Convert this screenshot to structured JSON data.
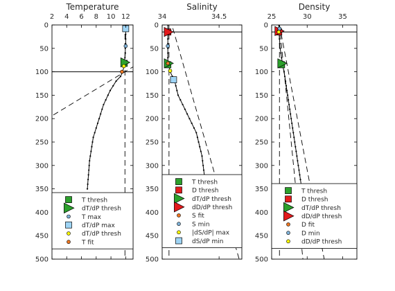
{
  "chart_data": [
    {
      "type": "line",
      "title": "Temperature",
      "xlim": [
        2,
        13
      ],
      "xticks": [
        2,
        4,
        6,
        8,
        10,
        12
      ],
      "ylim": [
        0,
        500
      ],
      "yticks": [
        0,
        50,
        100,
        150,
        200,
        250,
        300,
        350,
        400,
        450,
        500
      ],
      "y_reversed": true,
      "series": [
        {
          "kind": "profile",
          "points": [
            [
              12.0,
              0
            ],
            [
              12.0,
              10
            ],
            [
              12.0,
              20
            ],
            [
              12.0,
              30
            ],
            [
              12.0,
              40
            ],
            [
              11.95,
              50
            ],
            [
              11.95,
              60
            ],
            [
              11.9,
              70
            ],
            [
              11.8,
              80
            ],
            [
              11.75,
              90
            ],
            [
              11.6,
              100
            ],
            [
              11.3,
              110
            ],
            [
              10.7,
              120
            ],
            [
              10.3,
              130
            ],
            [
              9.9,
              140
            ],
            [
              9.6,
              150
            ],
            [
              9.3,
              160
            ],
            [
              9.0,
              170
            ],
            [
              8.8,
              180
            ],
            [
              8.6,
              190
            ],
            [
              8.4,
              200
            ],
            [
              8.2,
              210
            ],
            [
              8.0,
              220
            ],
            [
              7.8,
              230
            ],
            [
              7.6,
              240
            ],
            [
              7.5,
              250
            ],
            [
              7.4,
              260
            ],
            [
              7.3,
              270
            ],
            [
              7.2,
              280
            ],
            [
              7.1,
              290
            ],
            [
              7.05,
              300
            ],
            [
              7.0,
              310
            ],
            [
              6.95,
              320
            ],
            [
              6.9,
              330
            ],
            [
              6.85,
              340
            ],
            [
              6.8,
              350
            ]
          ]
        },
        {
          "kind": "dashed",
          "points": [
            [
              -2,
              232
            ],
            [
              14,
              80
            ]
          ]
        },
        {
          "kind": "vdashed",
          "x": 11.9
        }
      ],
      "hlines": [
        100
      ],
      "markers": [
        {
          "name": "T thresh",
          "shape": "square",
          "color": "#2ca02c",
          "x": 11.8,
          "y": 82
        },
        {
          "name": "dT/dP thresh",
          "shape": "triangle-right",
          "color": "#2ca02c",
          "x": 11.9,
          "y": 80
        },
        {
          "name": "T max",
          "shape": "circle",
          "color": "#7fb2d8",
          "x": 12.0,
          "y": 45
        },
        {
          "name": "dT/dP max",
          "shape": "square",
          "color": "#9ed4f5",
          "x": 12.0,
          "y": 8
        },
        {
          "name": "dT/dP thresh",
          "shape": "circle",
          "color": "#ffff00",
          "x": 11.75,
          "y": 88
        },
        {
          "name": "T fit",
          "shape": "circle",
          "color": "#ee7722",
          "x": 11.5,
          "y": 100
        }
      ],
      "legend": {
        "placement": "bottom",
        "entries": [
          {
            "label": "T thresh",
            "shape": "square",
            "color": "#2ca02c"
          },
          {
            "label": "dT/dP thresh",
            "shape": "triangle-right",
            "color": "#2ca02c"
          },
          {
            "label": "T max",
            "shape": "circle",
            "color": "#7fb2d8"
          },
          {
            "label": "dT/dP max",
            "shape": "square",
            "color": "#9ed4f5"
          },
          {
            "label": "dT/dP thresh",
            "shape": "circle",
            "color": "#ffff00"
          },
          {
            "label": "T fit",
            "shape": "circle",
            "color": "#ee7722"
          }
        ]
      }
    },
    {
      "type": "line",
      "title": "Salinity",
      "xlim": [
        34.0,
        34.7
      ],
      "xticks": [
        34,
        34.5
      ],
      "xticklabels": [
        "34",
        "34.5"
      ],
      "ylim": [
        0,
        500
      ],
      "yticks": [
        0,
        50,
        100,
        150,
        200,
        250,
        300,
        350,
        400,
        450,
        500
      ],
      "y_reversed": true,
      "series": [
        {
          "kind": "profile",
          "points": [
            [
              34.05,
              0
            ],
            [
              34.05,
              10
            ],
            [
              34.05,
              20
            ],
            [
              34.05,
              30
            ],
            [
              34.05,
              40
            ],
            [
              34.05,
              50
            ],
            [
              34.05,
              60
            ],
            [
              34.05,
              70
            ],
            [
              34.05,
              80
            ],
            [
              34.06,
              90
            ],
            [
              34.07,
              100
            ],
            [
              34.09,
              110
            ],
            [
              34.11,
              120
            ],
            [
              34.12,
              130
            ],
            [
              34.13,
              140
            ],
            [
              34.14,
              150
            ],
            [
              34.16,
              160
            ],
            [
              34.18,
              170
            ],
            [
              34.2,
              180
            ],
            [
              34.22,
              190
            ],
            [
              34.24,
              200
            ],
            [
              34.26,
              210
            ],
            [
              34.28,
              220
            ],
            [
              34.3,
              230
            ],
            [
              34.31,
              240
            ],
            [
              34.32,
              250
            ],
            [
              34.33,
              260
            ],
            [
              34.34,
              270
            ],
            [
              34.35,
              280
            ],
            [
              34.355,
              290
            ],
            [
              34.36,
              300
            ],
            [
              34.365,
              310
            ],
            [
              34.37,
              320
            ],
            [
              34.375,
              330
            ]
          ]
        },
        {
          "kind": "dashed",
          "points": [
            [
              34.05,
              -30
            ],
            [
              34.7,
              520
            ]
          ]
        },
        {
          "kind": "vdashed",
          "x": 34.06
        }
      ],
      "hlines": [
        15
      ],
      "markers": [
        {
          "name": "T thresh",
          "shape": "square",
          "color": "#2ca02c",
          "x": 34.05,
          "y": 85
        },
        {
          "name": "D thresh",
          "shape": "square",
          "color": "#e31a1c",
          "x": 34.05,
          "y": 15
        },
        {
          "name": "dT/dP thresh",
          "shape": "triangle-right",
          "color": "#2ca02c",
          "x": 34.055,
          "y": 82
        },
        {
          "name": "dD/dP thresh",
          "shape": "triangle-right",
          "color": "#e31a1c",
          "x": 34.055,
          "y": 15
        },
        {
          "name": "S fit",
          "shape": "circle",
          "color": "#ee7722",
          "x": 34.05,
          "y": 82
        },
        {
          "name": "S min",
          "shape": "circle",
          "color": "#7fb2d8",
          "x": 34.05,
          "y": 45
        },
        {
          "name": "|dS/dP| max",
          "shape": "circle",
          "color": "#ffff00",
          "x": 34.07,
          "y": 98
        },
        {
          "name": "dS/dP min",
          "shape": "square",
          "color": "#9ed4f5",
          "x": 34.1,
          "y": 117
        }
      ],
      "legend": {
        "placement": "bottom",
        "entries": [
          {
            "label": "T thresh",
            "shape": "square",
            "color": "#2ca02c"
          },
          {
            "label": "D thresh",
            "shape": "square",
            "color": "#e31a1c"
          },
          {
            "label": "dT/dP thresh",
            "shape": "triangle-right",
            "color": "#2ca02c"
          },
          {
            "label": "dD/dP thresh",
            "shape": "triangle-right",
            "color": "#e31a1c"
          },
          {
            "label": "S fit",
            "shape": "circle",
            "color": "#ee7722"
          },
          {
            "label": "S min",
            "shape": "circle",
            "color": "#7fb2d8"
          },
          {
            "label": "|dS/dP| max",
            "shape": "circle",
            "color": "#ffff00"
          },
          {
            "label": "dS/dP min",
            "shape": "square",
            "color": "#9ed4f5"
          }
        ]
      }
    },
    {
      "type": "line",
      "title": "Density",
      "xlim": [
        25,
        37
      ],
      "xticks": [
        25,
        30,
        35
      ],
      "ylim": [
        0,
        500
      ],
      "yticks": [
        0,
        50,
        100,
        150,
        200,
        250,
        300,
        350,
        400,
        450,
        500
      ],
      "y_reversed": true,
      "series": [
        {
          "kind": "profile",
          "points": [
            [
              26.0,
              0
            ],
            [
              26.0,
              10
            ],
            [
              26.05,
              20
            ],
            [
              26.1,
              30
            ],
            [
              26.15,
              40
            ],
            [
              26.2,
              50
            ],
            [
              26.3,
              60
            ],
            [
              26.4,
              70
            ],
            [
              26.5,
              80
            ],
            [
              26.6,
              90
            ],
            [
              26.75,
              100
            ],
            [
              26.85,
              110
            ],
            [
              26.95,
              120
            ],
            [
              27.05,
              130
            ],
            [
              27.15,
              140
            ],
            [
              27.25,
              150
            ],
            [
              27.35,
              160
            ],
            [
              27.45,
              170
            ],
            [
              27.55,
              180
            ],
            [
              27.65,
              190
            ],
            [
              27.75,
              200
            ],
            [
              27.85,
              210
            ],
            [
              27.95,
              220
            ],
            [
              28.05,
              230
            ],
            [
              28.15,
              240
            ],
            [
              28.25,
              250
            ],
            [
              28.35,
              260
            ],
            [
              28.45,
              270
            ],
            [
              28.55,
              280
            ],
            [
              28.65,
              290
            ],
            [
              28.75,
              300
            ],
            [
              28.85,
              310
            ],
            [
              28.95,
              320
            ],
            [
              29.05,
              330
            ],
            [
              29.15,
              340
            ],
            [
              29.25,
              350
            ]
          ]
        },
        {
          "kind": "dashed",
          "points": [
            [
              26.1,
              0
            ],
            [
              29.4,
              500
            ]
          ]
        },
        {
          "kind": "dashed",
          "points": [
            [
              26.1,
              0
            ],
            [
              32.4,
              500
            ]
          ]
        },
        {
          "kind": "vdashed",
          "x": 26.1
        }
      ],
      "hlines": [
        15
      ],
      "markers": [
        {
          "name": "T thresh",
          "shape": "square",
          "color": "#2ca02c",
          "x": 26.4,
          "y": 85
        },
        {
          "name": "D thresh",
          "shape": "square",
          "color": "#e31a1c",
          "x": 26.0,
          "y": 15
        },
        {
          "name": "dT/dP thresh",
          "shape": "triangle-right",
          "color": "#2ca02c",
          "x": 26.45,
          "y": 82
        },
        {
          "name": "dD/dP thresh",
          "shape": "triangle-right",
          "color": "#e31a1c",
          "x": 26.05,
          "y": 13
        },
        {
          "name": "D fit",
          "shape": "circle",
          "color": "#ee7722",
          "x": 26.0,
          "y": 14
        },
        {
          "name": "D min",
          "shape": "circle",
          "color": "#7fb2d8",
          "x": 26.1,
          "y": 8
        },
        {
          "name": "dD/dP thresh",
          "shape": "circle",
          "color": "#ffff00",
          "x": 26.0,
          "y": 15
        }
      ],
      "legend": {
        "placement": "bottom",
        "entries": [
          {
            "label": "T thresh",
            "shape": "square",
            "color": "#2ca02c"
          },
          {
            "label": "D thresh",
            "shape": "square",
            "color": "#e31a1c"
          },
          {
            "label": "dT/dP thresh",
            "shape": "triangle-right",
            "color": "#2ca02c"
          },
          {
            "label": "dD/dP thresh",
            "shape": "triangle-right",
            "color": "#e31a1c"
          },
          {
            "label": "D fit",
            "shape": "circle",
            "color": "#ee7722"
          },
          {
            "label": "D min",
            "shape": "circle",
            "color": "#7fb2d8"
          },
          {
            "label": "dD/dP thresh",
            "shape": "circle",
            "color": "#ffff00"
          }
        ]
      }
    }
  ]
}
